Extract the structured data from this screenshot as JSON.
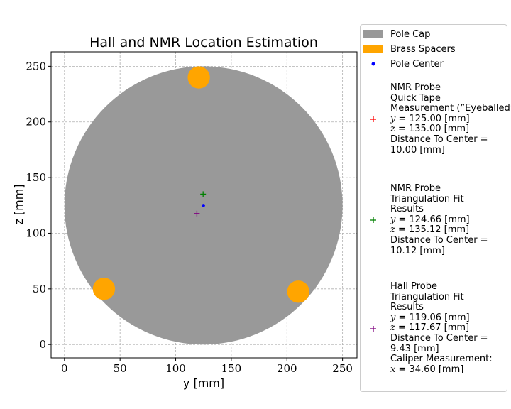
{
  "chart_data": {
    "type": "scatter",
    "title": "Hall and NMR Location Estimation",
    "xlabel": "y [mm]",
    "ylabel": "z [mm]",
    "xlim": [
      -12,
      263
    ],
    "ylim": [
      -12,
      263
    ],
    "xticks": [
      0,
      50,
      100,
      150,
      200,
      250
    ],
    "yticks": [
      0,
      50,
      100,
      150,
      200,
      250
    ],
    "grid": true,
    "legend_placement": "outside-right",
    "pole_cap": {
      "name": "Pole Cap",
      "center": [
        125,
        125
      ],
      "radius": 125,
      "color": "#999999"
    },
    "brass_spacers": {
      "name": "Brass Spacers",
      "color": "#ffa500",
      "radius": 10,
      "points": [
        [
          120.8,
          240
        ],
        [
          35.5,
          50
        ],
        [
          210.2,
          47.5
        ]
      ]
    },
    "pole_center": {
      "name": "Pole Center",
      "point": [
        125,
        125
      ],
      "color": "#0000ff"
    },
    "probes": [
      {
        "color": "#ff0000",
        "point": [
          125.0,
          135.0
        ],
        "draw_marker": false,
        "lines": [
          "NMR Probe",
          "Quick Tape",
          "Measurement (”Eyeballed”)",
          "y = 125.00 [mm]",
          "z = 135.00 [mm]",
          "Distance To Center =",
          "10.00 [mm]"
        ]
      },
      {
        "color": "#008000",
        "point": [
          124.66,
          135.12
        ],
        "draw_marker": true,
        "lines": [
          "NMR Probe",
          "Triangulation Fit",
          "Results",
          "y = 124.66 [mm]",
          "z = 135.12 [mm]",
          "Distance To Center =",
          "10.12 [mm]"
        ]
      },
      {
        "color": "#800080",
        "point": [
          119.06,
          117.67
        ],
        "draw_marker": true,
        "lines": [
          "Hall Probe",
          "Triangulation Fit",
          "Results",
          "y = 119.06 [mm]",
          "z = 117.67 [mm]",
          "Distance To Center =",
          "9.43 [mm]",
          "Caliper Measurement:",
          "x = 34.60 [mm]"
        ]
      }
    ]
  }
}
